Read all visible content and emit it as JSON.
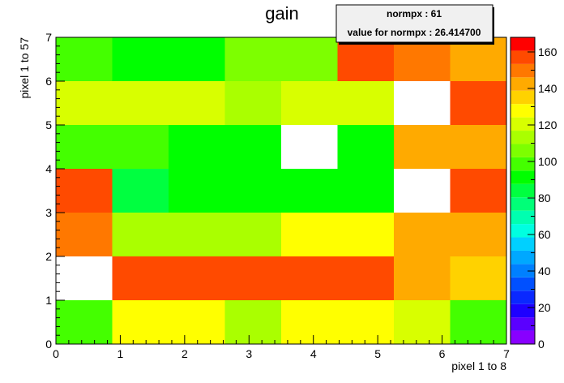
{
  "stats_box": {
    "line1": "normpx : 61",
    "line2": "value for normpx : 26.414700"
  },
  "chart_data": {
    "type": "heatmap",
    "title": "gain",
    "xlabel": "pixel 1 to 8",
    "ylabel": "pixel 1 to 57",
    "xlim": [
      0,
      7
    ],
    "ylim": [
      0,
      7
    ],
    "x_ticks": [
      "0",
      "1",
      "2",
      "3",
      "4",
      "5",
      "6",
      "7"
    ],
    "y_ticks": [
      "0",
      "1",
      "2",
      "3",
      "4",
      "5",
      "6",
      "7"
    ],
    "zlim": [
      0,
      168
    ],
    "z_ticks": [
      "0",
      "20",
      "40",
      "60",
      "80",
      "100",
      "120",
      "140",
      "160"
    ],
    "grid": false,
    "palette": [
      "#8800ff",
      "#5a00ff",
      "#1e00ff",
      "#0a28ff",
      "#0050ff",
      "#0080ff",
      "#00a8ff",
      "#00d0ff",
      "#00ffe0",
      "#00ffb0",
      "#00ff78",
      "#00ff40",
      "#00ff00",
      "#44ff00",
      "#7dff00",
      "#aaff00",
      "#d8ff00",
      "#ffff00",
      "#ffd200",
      "#ffaa00",
      "#ff7800",
      "#ff4a00",
      "#ff0000"
    ],
    "columns": [
      [
        95,
        null,
        150,
        155,
        102,
        120,
        97
      ],
      [
        130,
        155,
        115,
        85,
        96,
        118,
        90
      ],
      [
        130,
        155,
        115,
        90,
        90,
        118,
        90
      ],
      [
        115,
        160,
        115,
        90,
        90,
        115,
        106
      ],
      [
        130,
        155,
        125,
        90,
        null,
        122,
        106
      ],
      [
        130,
        155,
        125,
        90,
        92,
        122,
        160
      ],
      [
        122,
        145,
        140,
        null,
        140,
        null,
        150
      ],
      [
        95,
        132,
        145,
        155,
        145,
        155,
        140
      ]
    ],
    "note": "columns[j][i] = value at x-bin j (x from j*7/8 to (j+1)*7/8), y-bin i (y from i to i+1); null = empty bin"
  }
}
